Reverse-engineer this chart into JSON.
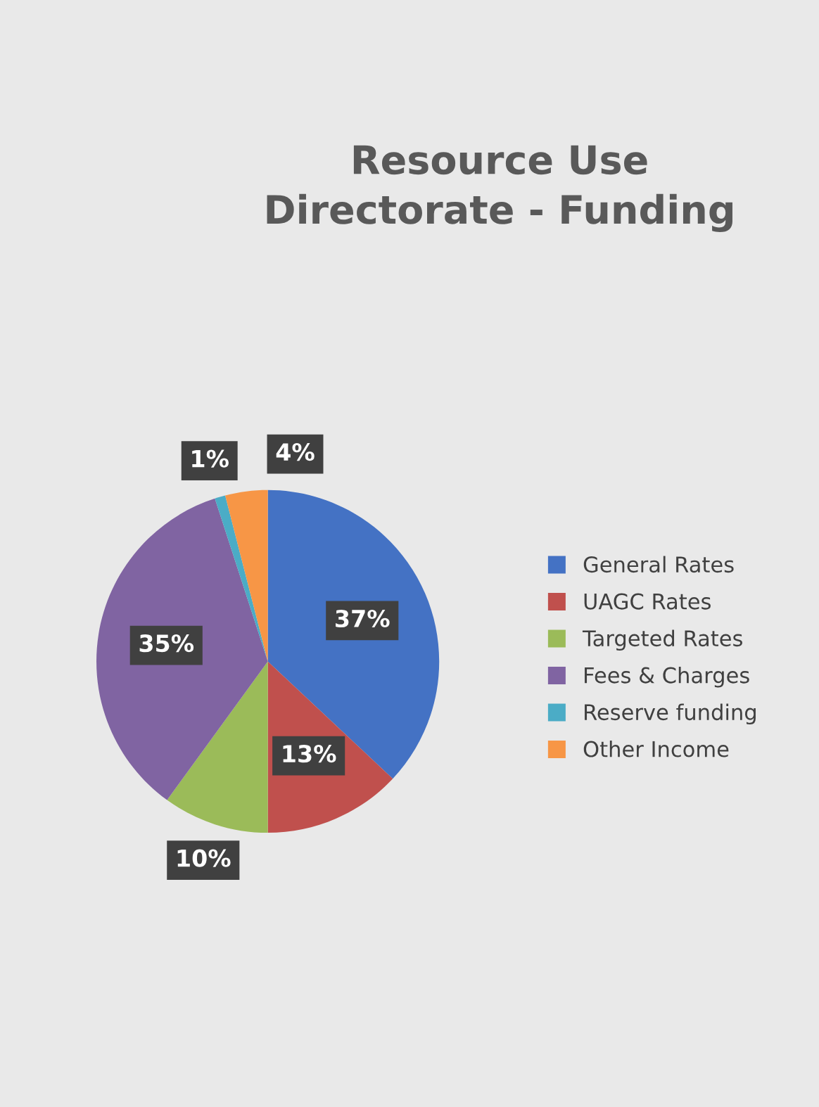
{
  "chart_data": {
    "type": "pie",
    "title": "Resource Use\nDirectorate - Funding",
    "categories": [
      "General Rates",
      "UAGC Rates",
      "Targeted Rates",
      "Fees & Charges",
      "Reserve funding",
      "Other Income"
    ],
    "values": [
      37,
      13,
      10,
      35,
      1,
      4
    ],
    "colors": [
      "#4472c4",
      "#c0504d",
      "#9bbb59",
      "#8064a2",
      "#4bacc6",
      "#f79646"
    ],
    "value_labels": [
      "37%",
      "13%",
      "10%",
      "35%",
      "1%",
      "4%"
    ],
    "legend": "right"
  }
}
